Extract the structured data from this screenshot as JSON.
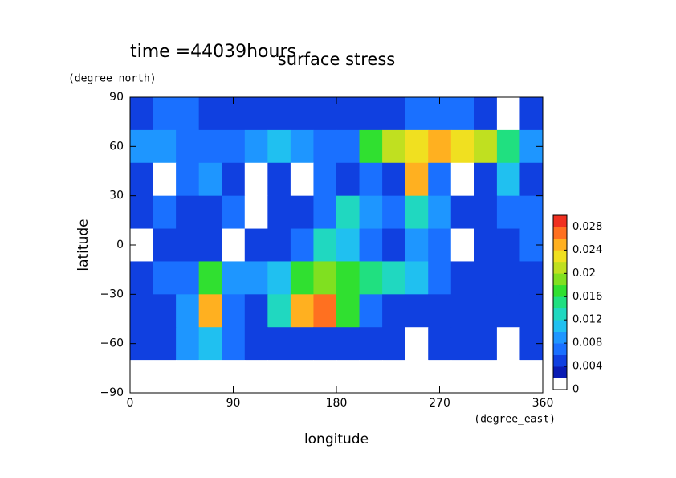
{
  "chart_data": {
    "type": "contour",
    "title": "surface stress",
    "subtitle": "time =44039hours",
    "x_label": "longitude",
    "x_unit": "(degree_east)",
    "y_label": "latitude",
    "y_unit": "(degree_north)",
    "x": [
      10,
      30,
      50,
      70,
      90,
      110,
      130,
      150,
      170,
      190,
      210,
      230,
      250,
      270,
      290,
      310,
      330,
      350
    ],
    "y": [
      80,
      60,
      40,
      20,
      0,
      -20,
      -40,
      -60,
      -80
    ],
    "z": [
      [
        0.004,
        0.006,
        0.006,
        0.005,
        0.004,
        0.004,
        0.004,
        0.004,
        0.005,
        0.004,
        0.004,
        0.004,
        0.006,
        0.006,
        0.006,
        0.004,
        0,
        0.004
      ],
      [
        0.008,
        0.008,
        0.006,
        0.006,
        0.006,
        0.008,
        0.01,
        0.008,
        0.006,
        0.006,
        0.016,
        0.02,
        0.022,
        0.024,
        0.022,
        0.02,
        0.014,
        0.008
      ],
      [
        0.004,
        0,
        0.006,
        0.008,
        0.004,
        0,
        0.004,
        0,
        0.006,
        0.004,
        0.006,
        0.004,
        0.024,
        0.006,
        0,
        0.004,
        0.01,
        0.004
      ],
      [
        0.004,
        0.006,
        0.004,
        0.004,
        0.006,
        0,
        0.004,
        0.004,
        0.006,
        0.012,
        0.008,
        0.006,
        0.012,
        0.008,
        0.004,
        0.004,
        0.006,
        0.006
      ],
      [
        0,
        0.004,
        0.004,
        0.004,
        0,
        0.004,
        0.004,
        0.006,
        0.012,
        0.01,
        0.006,
        0.004,
        0.008,
        0.006,
        0,
        0.004,
        0.004,
        0.006
      ],
      [
        0.004,
        0.006,
        0.006,
        0.016,
        0.008,
        0.008,
        0.01,
        0.016,
        0.018,
        0.016,
        0.014,
        0.012,
        0.01,
        0.006,
        0.004,
        0.004,
        0.004,
        0.004
      ],
      [
        0.004,
        0.004,
        0.008,
        0.024,
        0.006,
        0.004,
        0.012,
        0.024,
        0.026,
        0.016,
        0.006,
        0.004,
        0.004,
        0.004,
        0.004,
        0.004,
        0.004,
        0.004
      ],
      [
        0.004,
        0.004,
        0.008,
        0.01,
        0.006,
        0.004,
        0.004,
        0.004,
        0.004,
        0.004,
        0.004,
        0.004,
        0,
        0.004,
        0.004,
        0.004,
        0,
        0.004
      ],
      [
        0,
        0,
        0,
        0,
        0,
        0,
        0,
        0,
        0,
        0,
        0,
        0,
        0,
        0,
        0,
        0,
        0,
        0
      ]
    ],
    "xlim": [
      0,
      360
    ],
    "ylim": [
      -90,
      90
    ],
    "xticks": [
      0,
      90,
      180,
      270,
      360
    ],
    "yticks": [
      {
        "value": -90,
        "label": "−90"
      },
      {
        "value": -60,
        "label": "−60"
      },
      {
        "value": -30,
        "label": "−30"
      },
      0,
      30,
      60,
      90
    ],
    "levels": [
      0,
      0.002,
      0.004,
      0.006,
      0.008,
      0.01,
      0.012,
      0.014,
      0.016,
      0.018,
      0.02,
      0.022,
      0.024,
      0.026,
      0.028,
      0.03
    ],
    "colors": [
      "#ffffff",
      "#0a1cb4",
      "#1040e0",
      "#1a70ff",
      "#1e96ff",
      "#20c0f0",
      "#20d8c0",
      "#20e080",
      "#30e030",
      "#80e020",
      "#c0e020",
      "#f0e020",
      "#ffb020",
      "#ff7020",
      "#f03020"
    ],
    "colorbar_ticks": [
      0,
      0.004,
      0.008,
      0.012,
      0.016,
      0.02,
      0.024,
      0.028
    ]
  }
}
